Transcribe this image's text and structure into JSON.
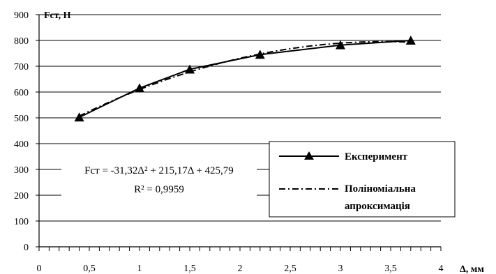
{
  "chart_data": {
    "type": "line",
    "title": "",
    "xlabel": "Δ, мм",
    "ylabel": "Fст, Н",
    "xlim": [
      0,
      4
    ],
    "ylim": [
      0,
      900
    ],
    "x_ticks": [
      "0",
      "0,5",
      "1",
      "1,5",
      "2",
      "2,5",
      "3",
      "3,5",
      "4"
    ],
    "y_ticks": [
      "0",
      "100",
      "200",
      "300",
      "400",
      "500",
      "600",
      "700",
      "800",
      "900"
    ],
    "grid": "horizontal",
    "legend_position": "right",
    "series": [
      {
        "name": "Експеримент",
        "style": "solid",
        "marker": "triangle",
        "color": "#000000",
        "x": [
          0.4,
          1.0,
          1.5,
          2.2,
          3.0,
          3.7
        ],
        "y": [
          502,
          615,
          688,
          745,
          782,
          800
        ]
      },
      {
        "name": "Поліноміальна апроксимація",
        "style": "dash-dot",
        "marker": "none",
        "color": "#000000",
        "coefficients": [
          -31.32,
          215.17,
          425.79
        ],
        "x_range": [
          0.4,
          3.7
        ]
      }
    ],
    "annotation": {
      "equation": "Fст = -31,32Δ² + 215,17Δ + 425,79",
      "r_squared": "R² = 0,9959"
    }
  }
}
